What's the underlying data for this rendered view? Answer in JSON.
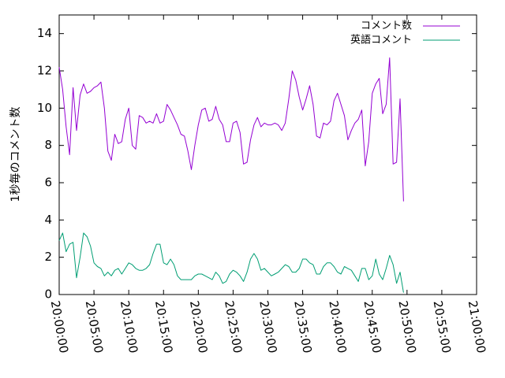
{
  "chart_data": {
    "type": "line",
    "ylabel": "1秒毎のコメント数",
    "xlim_minutes": [
      0,
      60
    ],
    "ylim": [
      0,
      15
    ],
    "y_ticks": [
      0,
      2,
      4,
      6,
      8,
      10,
      12,
      14
    ],
    "x_ticks": [
      {
        "t": 0,
        "label": "20:00:00"
      },
      {
        "t": 5,
        "label": "20:05:00"
      },
      {
        "t": 10,
        "label": "20:10:00"
      },
      {
        "t": 15,
        "label": "20:15:00"
      },
      {
        "t": 20,
        "label": "20:20:00"
      },
      {
        "t": 25,
        "label": "20:25:00"
      },
      {
        "t": 30,
        "label": "20:30:00"
      },
      {
        "t": 35,
        "label": "20:35:00"
      },
      {
        "t": 40,
        "label": "20:40:00"
      },
      {
        "t": 45,
        "label": "20:45:00"
      },
      {
        "t": 50,
        "label": "20:50:00"
      },
      {
        "t": 55,
        "label": "20:55:00"
      },
      {
        "t": 60,
        "label": "21:00:00"
      }
    ],
    "grid": false,
    "legend_position": "top-right",
    "series": [
      {
        "name": "コメント数",
        "color": "#9400d3",
        "points": [
          [
            0,
            12.2
          ],
          [
            0.5,
            11.0
          ],
          [
            1.0,
            9.0
          ],
          [
            1.5,
            7.5
          ],
          [
            2.0,
            11.1
          ],
          [
            2.5,
            8.8
          ],
          [
            3.0,
            10.7
          ],
          [
            3.5,
            11.3
          ],
          [
            4.0,
            10.8
          ],
          [
            4.5,
            10.9
          ],
          [
            5.0,
            11.1
          ],
          [
            5.5,
            11.2
          ],
          [
            6.0,
            11.4
          ],
          [
            6.5,
            10.0
          ],
          [
            7.0,
            7.7
          ],
          [
            7.5,
            7.2
          ],
          [
            8.0,
            8.6
          ],
          [
            8.5,
            8.1
          ],
          [
            9.0,
            8.2
          ],
          [
            9.5,
            9.4
          ],
          [
            10.0,
            10.0
          ],
          [
            10.5,
            8.0
          ],
          [
            11.0,
            7.8
          ],
          [
            11.5,
            9.6
          ],
          [
            12.0,
            9.5
          ],
          [
            12.5,
            9.2
          ],
          [
            13.0,
            9.3
          ],
          [
            13.5,
            9.2
          ],
          [
            14.0,
            9.7
          ],
          [
            14.5,
            9.2
          ],
          [
            15.0,
            9.3
          ],
          [
            15.5,
            10.2
          ],
          [
            16.0,
            9.9
          ],
          [
            16.5,
            9.5
          ],
          [
            17.0,
            9.1
          ],
          [
            17.5,
            8.6
          ],
          [
            18.0,
            8.5
          ],
          [
            18.5,
            7.7
          ],
          [
            19.0,
            6.7
          ],
          [
            19.5,
            8.0
          ],
          [
            20.0,
            9.1
          ],
          [
            20.5,
            9.9
          ],
          [
            21.0,
            10.0
          ],
          [
            21.5,
            9.3
          ],
          [
            22.0,
            9.4
          ],
          [
            22.5,
            10.1
          ],
          [
            23.0,
            9.4
          ],
          [
            23.5,
            9.1
          ],
          [
            24.0,
            8.2
          ],
          [
            24.5,
            8.2
          ],
          [
            25.0,
            9.2
          ],
          [
            25.5,
            9.3
          ],
          [
            26.0,
            8.7
          ],
          [
            26.5,
            7.0
          ],
          [
            27.0,
            7.1
          ],
          [
            27.5,
            8.3
          ],
          [
            28.0,
            9.1
          ],
          [
            28.5,
            9.5
          ],
          [
            29.0,
            9.0
          ],
          [
            29.5,
            9.2
          ],
          [
            30.0,
            9.1
          ],
          [
            30.5,
            9.1
          ],
          [
            31.0,
            9.2
          ],
          [
            31.5,
            9.1
          ],
          [
            32.0,
            8.8
          ],
          [
            32.5,
            9.2
          ],
          [
            33.0,
            10.5
          ],
          [
            33.5,
            12.0
          ],
          [
            34.0,
            11.5
          ],
          [
            34.5,
            10.6
          ],
          [
            35.0,
            9.9
          ],
          [
            35.5,
            10.5
          ],
          [
            36.0,
            11.2
          ],
          [
            36.5,
            10.2
          ],
          [
            37.0,
            8.5
          ],
          [
            37.5,
            8.4
          ],
          [
            38.0,
            9.2
          ],
          [
            38.5,
            9.1
          ],
          [
            39.0,
            9.3
          ],
          [
            39.5,
            10.4
          ],
          [
            40.0,
            10.8
          ],
          [
            40.5,
            10.2
          ],
          [
            41.0,
            9.6
          ],
          [
            41.5,
            8.3
          ],
          [
            42.0,
            8.8
          ],
          [
            42.5,
            9.2
          ],
          [
            43.0,
            9.4
          ],
          [
            43.5,
            9.9
          ],
          [
            44.0,
            6.9
          ],
          [
            44.5,
            8.2
          ],
          [
            45.0,
            10.8
          ],
          [
            45.5,
            11.3
          ],
          [
            46.0,
            11.6
          ],
          [
            46.5,
            9.7
          ],
          [
            47.0,
            10.2
          ],
          [
            47.5,
            12.7
          ],
          [
            48.0,
            7.0
          ],
          [
            48.5,
            7.1
          ],
          [
            49.0,
            10.5
          ],
          [
            49.5,
            5.0
          ]
        ]
      },
      {
        "name": "英語コメント",
        "color": "#009e73",
        "points": [
          [
            0,
            2.9
          ],
          [
            0.5,
            3.3
          ],
          [
            1.0,
            2.3
          ],
          [
            1.5,
            2.7
          ],
          [
            2.0,
            2.8
          ],
          [
            2.5,
            0.9
          ],
          [
            3.0,
            2.0
          ],
          [
            3.5,
            3.3
          ],
          [
            4.0,
            3.1
          ],
          [
            4.5,
            2.6
          ],
          [
            5.0,
            1.7
          ],
          [
            5.5,
            1.5
          ],
          [
            6.0,
            1.4
          ],
          [
            6.5,
            1.0
          ],
          [
            7.0,
            1.2
          ],
          [
            7.5,
            1.0
          ],
          [
            8.0,
            1.3
          ],
          [
            8.5,
            1.4
          ],
          [
            9.0,
            1.1
          ],
          [
            9.5,
            1.4
          ],
          [
            10.0,
            1.7
          ],
          [
            10.5,
            1.6
          ],
          [
            11.0,
            1.4
          ],
          [
            11.5,
            1.3
          ],
          [
            12.0,
            1.3
          ],
          [
            12.5,
            1.4
          ],
          [
            13.0,
            1.6
          ],
          [
            13.5,
            2.2
          ],
          [
            14.0,
            2.7
          ],
          [
            14.5,
            2.7
          ],
          [
            15.0,
            1.7
          ],
          [
            15.5,
            1.6
          ],
          [
            16.0,
            1.9
          ],
          [
            16.5,
            1.6
          ],
          [
            17.0,
            1.0
          ],
          [
            17.5,
            0.8
          ],
          [
            18.0,
            0.8
          ],
          [
            18.5,
            0.8
          ],
          [
            19.0,
            0.8
          ],
          [
            19.5,
            1.0
          ],
          [
            20.0,
            1.1
          ],
          [
            20.5,
            1.1
          ],
          [
            21.0,
            1.0
          ],
          [
            21.5,
            0.9
          ],
          [
            22.0,
            0.8
          ],
          [
            22.5,
            1.2
          ],
          [
            23.0,
            1.0
          ],
          [
            23.5,
            0.6
          ],
          [
            24.0,
            0.7
          ],
          [
            24.5,
            1.1
          ],
          [
            25.0,
            1.3
          ],
          [
            25.5,
            1.2
          ],
          [
            26.0,
            1.0
          ],
          [
            26.5,
            0.7
          ],
          [
            27.0,
            1.2
          ],
          [
            27.5,
            1.9
          ],
          [
            28.0,
            2.2
          ],
          [
            28.5,
            1.9
          ],
          [
            29.0,
            1.3
          ],
          [
            29.5,
            1.4
          ],
          [
            30.0,
            1.2
          ],
          [
            30.5,
            1.0
          ],
          [
            31.0,
            1.1
          ],
          [
            31.5,
            1.2
          ],
          [
            32.0,
            1.4
          ],
          [
            32.5,
            1.6
          ],
          [
            33.0,
            1.5
          ],
          [
            33.5,
            1.2
          ],
          [
            34.0,
            1.2
          ],
          [
            34.5,
            1.4
          ],
          [
            35.0,
            1.9
          ],
          [
            35.5,
            1.9
          ],
          [
            36.0,
            1.7
          ],
          [
            36.5,
            1.6
          ],
          [
            37.0,
            1.1
          ],
          [
            37.5,
            1.1
          ],
          [
            38.0,
            1.5
          ],
          [
            38.5,
            1.7
          ],
          [
            39.0,
            1.7
          ],
          [
            39.5,
            1.5
          ],
          [
            40.0,
            1.2
          ],
          [
            40.5,
            1.1
          ],
          [
            41.0,
            1.5
          ],
          [
            41.5,
            1.4
          ],
          [
            42.0,
            1.3
          ],
          [
            42.5,
            1.0
          ],
          [
            43.0,
            0.7
          ],
          [
            43.5,
            1.4
          ],
          [
            44.0,
            1.4
          ],
          [
            44.5,
            0.8
          ],
          [
            45.0,
            1.0
          ],
          [
            45.5,
            1.9
          ],
          [
            46.0,
            1.1
          ],
          [
            46.5,
            0.8
          ],
          [
            47.0,
            1.4
          ],
          [
            47.5,
            2.1
          ],
          [
            48.0,
            1.6
          ],
          [
            48.5,
            0.6
          ],
          [
            49.0,
            1.2
          ],
          [
            49.5,
            0.1
          ]
        ]
      }
    ]
  }
}
